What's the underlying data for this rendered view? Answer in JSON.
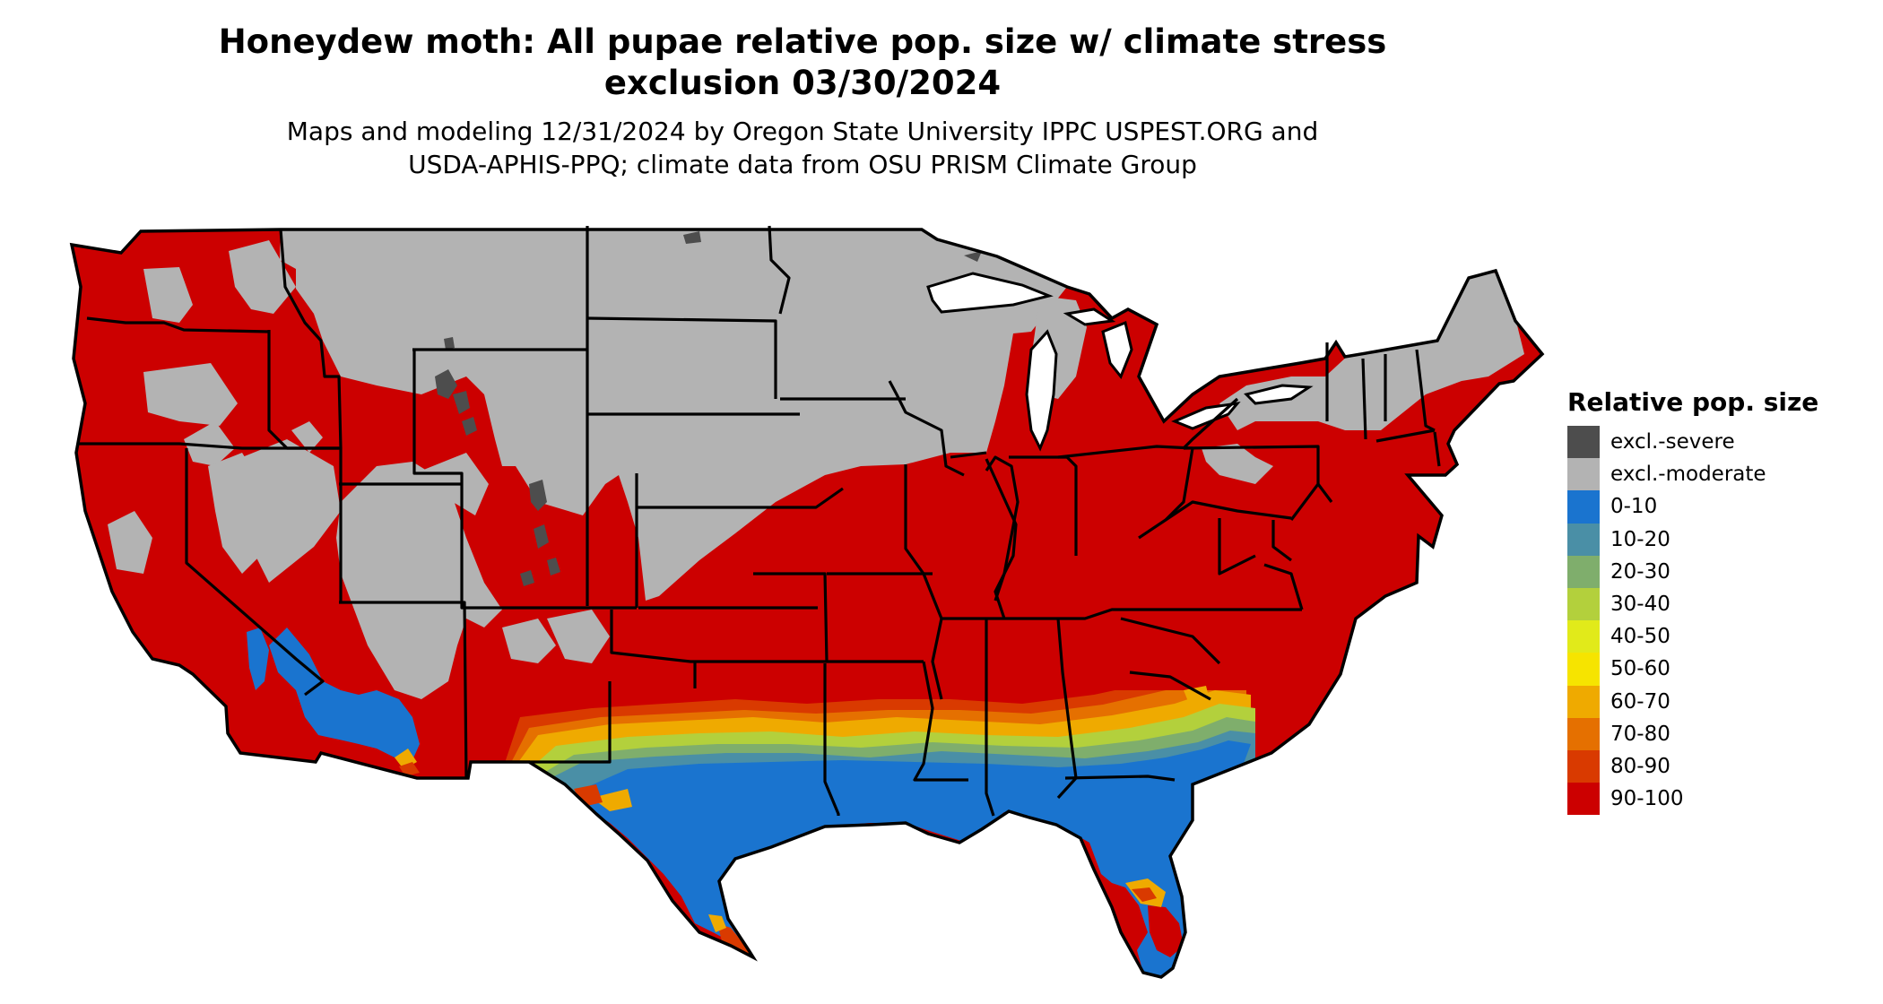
{
  "title": {
    "line1": "Honeydew moth: All pupae relative pop. size w/ climate stress",
    "line2": "exclusion 03/30/2024"
  },
  "subtitle": {
    "line1": "Maps and modeling 12/31/2024 by Oregon State University IPPC USPEST.ORG and",
    "line2": "USDA-APHIS-PPQ; climate data from OSU PRISM Climate Group"
  },
  "legend": {
    "title": "Relative pop. size",
    "items": [
      {
        "label": "excl.-severe",
        "color": "#4d4d4d"
      },
      {
        "label": "excl.-moderate",
        "color": "#b3b3b3"
      },
      {
        "label": "0-10",
        "color": "#1a74cf"
      },
      {
        "label": "10-20",
        "color": "#4a8fa6"
      },
      {
        "label": "20-30",
        "color": "#7fae6c"
      },
      {
        "label": "30-40",
        "color": "#b3d03c"
      },
      {
        "label": "40-50",
        "color": "#e1ea1a"
      },
      {
        "label": "50-60",
        "color": "#f6e400"
      },
      {
        "label": "60-70",
        "color": "#efaa00"
      },
      {
        "label": "70-80",
        "color": "#e57000"
      },
      {
        "label": "80-90",
        "color": "#d93a00"
      },
      {
        "label": "90-100",
        "color": "#cc0000"
      }
    ]
  },
  "map": {
    "region": "contiguous-united-states",
    "colors": {
      "border": "#000000",
      "exclusion_moderate": "#b3b3b3",
      "exclusion_severe": "#4d4d4d",
      "pop_90_100": "#cc0000",
      "pop_0_10": "#1a74cf"
    }
  }
}
